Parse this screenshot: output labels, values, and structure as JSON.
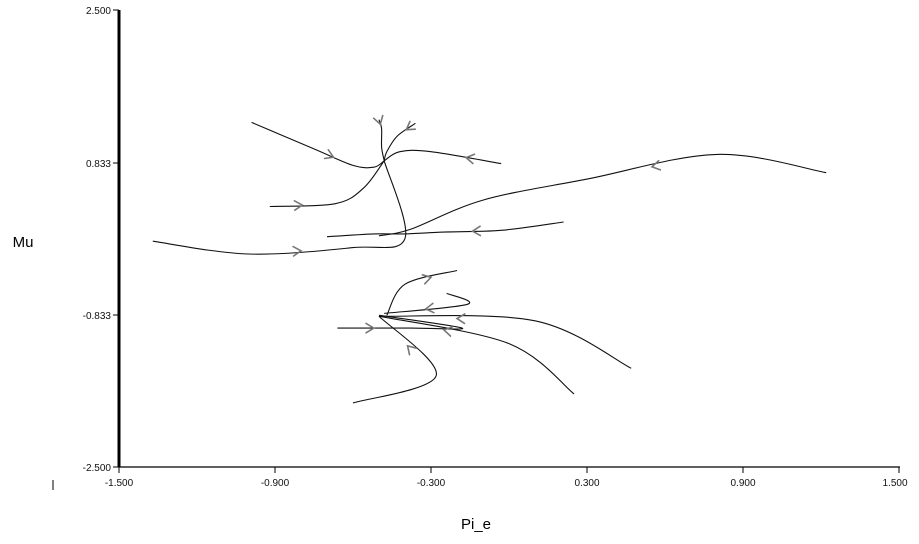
{
  "chart_data": {
    "type": "line",
    "title": "",
    "xlabel": "Pi_e",
    "ylabel": "Mu",
    "xlim": [
      -1.5,
      1.5
    ],
    "ylim": [
      -2.5,
      2.5
    ],
    "x_tick_labels": [
      "-1.500",
      "-0.900",
      "-0.300",
      "0.300",
      "0.900",
      "1.500"
    ],
    "y_tick_labels": [
      "2.500",
      "0.833",
      "-0.833",
      "-2.500"
    ],
    "grid": false,
    "legend": "none",
    "series": [
      {
        "values": [
          [
            -0.99,
            1.27
          ],
          [
            -0.75,
            0.98
          ],
          [
            -0.6,
            0.8
          ],
          [
            -0.52,
            0.78
          ],
          [
            -0.48,
            0.85
          ]
        ]
      },
      {
        "values": [
          [
            -0.5,
            1.3
          ],
          [
            -0.49,
            1.2
          ],
          [
            -0.49,
            1.0
          ],
          [
            -0.48,
            0.85
          ]
        ]
      },
      {
        "values": [
          [
            -0.36,
            1.26
          ],
          [
            -0.43,
            1.12
          ],
          [
            -0.47,
            0.95
          ],
          [
            -0.48,
            0.85
          ]
        ]
      },
      {
        "values": [
          [
            -0.03,
            0.82
          ],
          [
            -0.3,
            0.95
          ],
          [
            -0.42,
            0.95
          ],
          [
            -0.48,
            0.85
          ]
        ]
      },
      {
        "values": [
          [
            -0.92,
            0.35
          ],
          [
            -0.67,
            0.38
          ],
          [
            -0.56,
            0.55
          ],
          [
            -0.48,
            0.85
          ]
        ]
      },
      {
        "values": [
          [
            -1.37,
            -0.03
          ],
          [
            -1.0,
            -0.17
          ],
          [
            -0.6,
            -0.1
          ],
          [
            -0.4,
            0.0
          ],
          [
            -0.48,
            0.85
          ]
        ]
      },
      {
        "values": [
          [
            1.22,
            0.72
          ],
          [
            0.8,
            0.92
          ],
          [
            0.3,
            0.65
          ],
          [
            -0.1,
            0.42
          ],
          [
            -0.38,
            0.1
          ],
          [
            -0.5,
            0.03
          ]
        ]
      },
      {
        "values": [
          [
            0.21,
            0.18
          ],
          [
            -0.03,
            0.09
          ],
          [
            -0.25,
            0.07
          ],
          [
            -0.4,
            0.05
          ],
          [
            -0.52,
            0.05
          ],
          [
            -0.7,
            0.02
          ]
        ]
      },
      {
        "values": [
          [
            -0.24,
            -0.6
          ],
          [
            -0.16,
            -0.72
          ],
          [
            -0.48,
            -0.82
          ]
        ]
      },
      {
        "values": [
          [
            -0.66,
            -0.98
          ],
          [
            -0.38,
            -0.98
          ],
          [
            -0.18,
            -0.98
          ],
          [
            -0.5,
            -0.84
          ]
        ]
      },
      {
        "values": [
          [
            -0.6,
            -1.8
          ],
          [
            -0.28,
            -1.5
          ],
          [
            -0.5,
            -0.85
          ]
        ]
      },
      {
        "values": [
          [
            0.25,
            -1.7
          ],
          [
            0.0,
            -1.15
          ],
          [
            -0.5,
            -0.85
          ]
        ]
      },
      {
        "values": [
          [
            0.47,
            -1.42
          ],
          [
            0.1,
            -0.9
          ],
          [
            -0.5,
            -0.85
          ]
        ]
      },
      {
        "values": [
          [
            -0.47,
            -0.84
          ],
          [
            -0.4,
            -0.5
          ],
          [
            -0.2,
            -0.35
          ]
        ]
      }
    ]
  }
}
